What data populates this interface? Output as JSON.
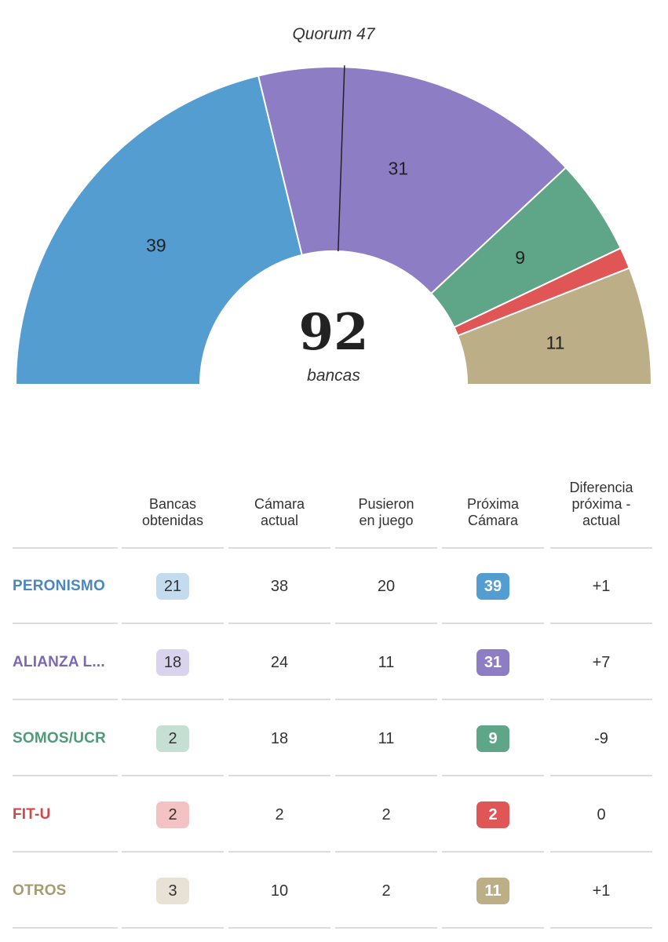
{
  "quorum_label": "Quorum 47",
  "total": {
    "value": "92",
    "unit": "bancas"
  },
  "chart_data": {
    "type": "pie",
    "shape": "semicircle",
    "total_seats": 92,
    "quorum": 47,
    "slices": [
      {
        "party": "PERONISMO",
        "value": 39,
        "label": "39",
        "color": "#549dd0"
      },
      {
        "party": "ALIANZA L...",
        "value": 31,
        "label": "31",
        "color": "#8c7dc5"
      },
      {
        "party": "SOMOS/UCR",
        "value": 9,
        "label": "9",
        "color": "#5fa587"
      },
      {
        "party": "FIT-U",
        "value": 2,
        "label": "",
        "color": "#e05555"
      },
      {
        "party": "OTROS",
        "value": 11,
        "label": "11",
        "color": "#bcaf88"
      }
    ]
  },
  "table": {
    "headers": [
      "Bancas\nobtenidas",
      "Cámara\nactual",
      "Pusieron\nen juego",
      "Próxima\nCámara",
      "Diferencia\npróxima -\nactual"
    ],
    "rows": [
      {
        "party": "PERONISMO",
        "color": "#4a86c0",
        "light": "#c2dbef",
        "strong": "#549dd0",
        "obtenidas": "21",
        "actual": "38",
        "en_juego": "20",
        "proxima": "39",
        "diferencia": "+1"
      },
      {
        "party": "ALIANZA L...",
        "color": "#7a68b5",
        "light": "#d9d3ee",
        "strong": "#8c7dc5",
        "obtenidas": "18",
        "actual": "24",
        "en_juego": "11",
        "proxima": "31",
        "diferencia": "+7"
      },
      {
        "party": "SOMOS/UCR",
        "color": "#4f9a79",
        "light": "#c5e0d3",
        "strong": "#5fa587",
        "obtenidas": "2",
        "actual": "18",
        "en_juego": "11",
        "proxima": "9",
        "diferencia": "-9"
      },
      {
        "party": "FIT-U",
        "color": "#d04848",
        "light": "#f3c2c2",
        "strong": "#e05555",
        "obtenidas": "2",
        "actual": "2",
        "en_juego": "2",
        "proxima": "2",
        "diferencia": "0"
      },
      {
        "party": "OTROS",
        "color": "#a89a6e",
        "light": "#e7e2d5",
        "strong": "#bcaf88",
        "obtenidas": "3",
        "actual": "10",
        "en_juego": "2",
        "proxima": "11",
        "diferencia": "+1"
      }
    ]
  }
}
